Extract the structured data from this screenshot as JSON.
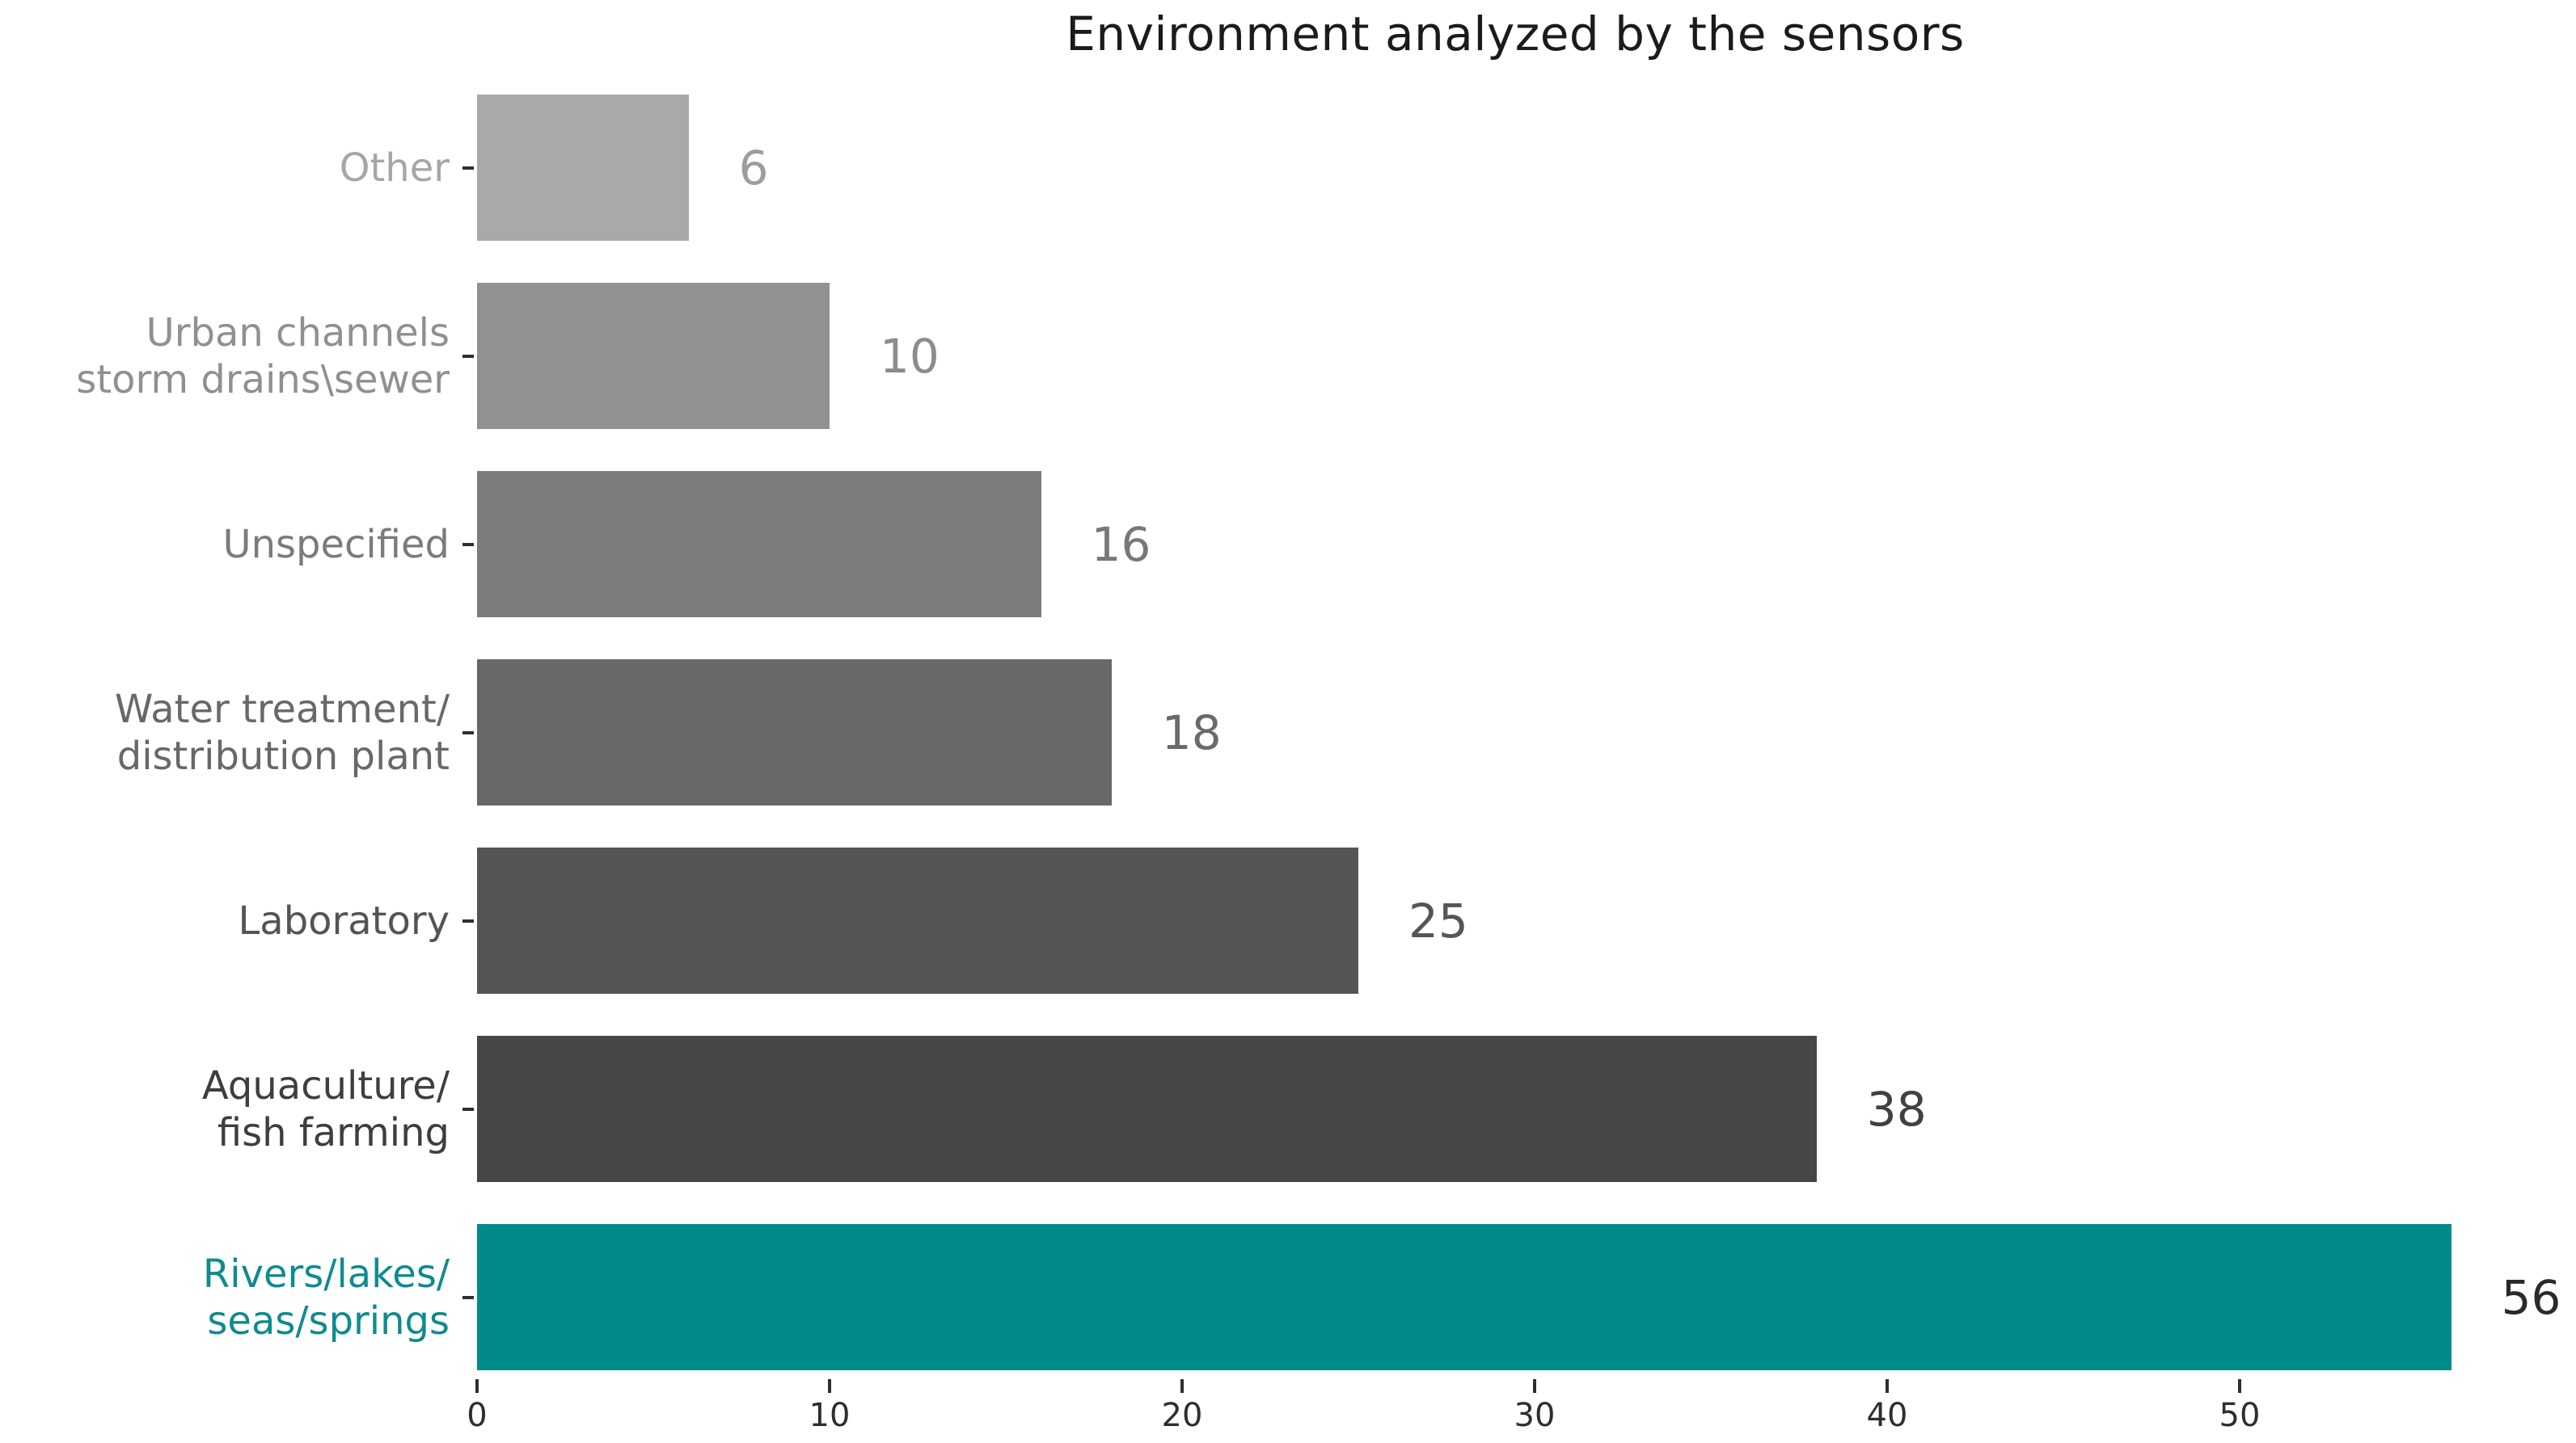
{
  "chart_data": {
    "type": "bar",
    "orientation": "horizontal",
    "title": "Environment analyzed by the sensors",
    "categories": [
      "Other",
      "Urban channels\nstorm drains\\sewer",
      "Unspecified",
      "Water treatment/\ndistribution plant",
      "Laboratory",
      "Aquaculture/\nfish farming",
      "Rivers/lakes/\nseas/springs"
    ],
    "values": [
      6,
      10,
      16,
      18,
      25,
      38,
      56
    ],
    "value_labels": [
      "6",
      "10",
      "16",
      "18",
      "25",
      "38",
      "56"
    ],
    "bar_colors": [
      "#a9a9a9",
      "#919191",
      "#7c7c7c",
      "#686868",
      "#555555",
      "#464646",
      "#008b8b"
    ],
    "category_label_colors": [
      "#a6a6a6",
      "#909090",
      "#7b7b7b",
      "#686868",
      "#545454",
      "#3e3e3e",
      "#0f8b8e"
    ],
    "value_label_colors": [
      "#9d9d9d",
      "#8c8c8c",
      "#787878",
      "#6a6a6a",
      "#565656",
      "#414141",
      "#2a2a2a"
    ],
    "xlabel": "",
    "ylabel": "",
    "xticks": [
      0,
      10,
      20,
      30,
      40,
      50
    ],
    "xlim": [
      0,
      56.6
    ],
    "grid": false,
    "legend": null,
    "highlight_category": "Rivers/lakes/\nseas/springs",
    "highlight_color": "#008b8b"
  },
  "colors": {
    "background": "#ffffff",
    "title": "#1b1b1b",
    "axis_tick": "#2e2e2e"
  }
}
